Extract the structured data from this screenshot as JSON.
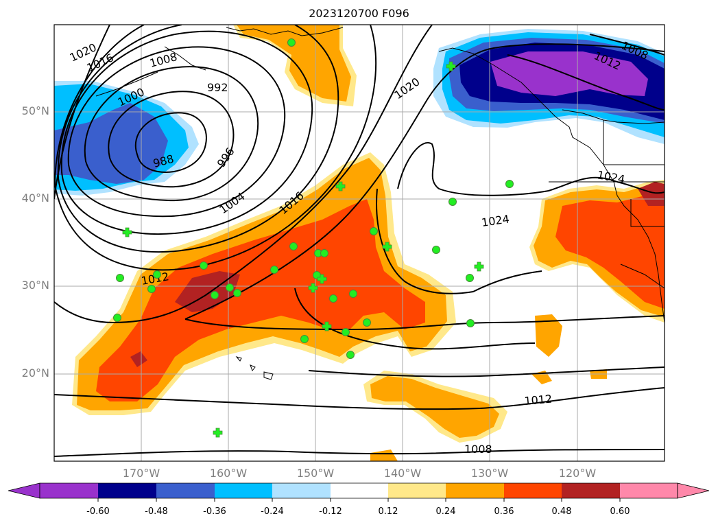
{
  "title": "2023120700 F096",
  "lat_labels": [
    "50°N",
    "40°N",
    "30°N",
    "20°N"
  ],
  "lon_labels": [
    "170°W",
    "160°W",
    "150°W",
    "140°W",
    "130°W",
    "120°W"
  ],
  "isobar_labels": [
    "1020",
    "1016",
    "1008",
    "1000",
    "992",
    "988",
    "996",
    "1004",
    "1016",
    "1020",
    "1024",
    "1024",
    "1012",
    "1012",
    "1008",
    "1008",
    "1012"
  ],
  "colorbar": {
    "labels": [
      "-0.60",
      "-0.48",
      "-0.36",
      "-0.24",
      "-0.12",
      "0.12",
      "0.24",
      "0.36",
      "0.48",
      "0.60"
    ],
    "colors": [
      "#9932cc",
      "#00008b",
      "#3a5fcd",
      "#00bfff",
      "#b0e2ff",
      "#ffffff",
      "#ffe88a",
      "#ffa500",
      "#ff4500",
      "#b22222",
      "#ff88aa"
    ]
  },
  "colors": {
    "grid": "#aaaaaa",
    "contour": "#000000",
    "marker": "#22ee22"
  }
}
